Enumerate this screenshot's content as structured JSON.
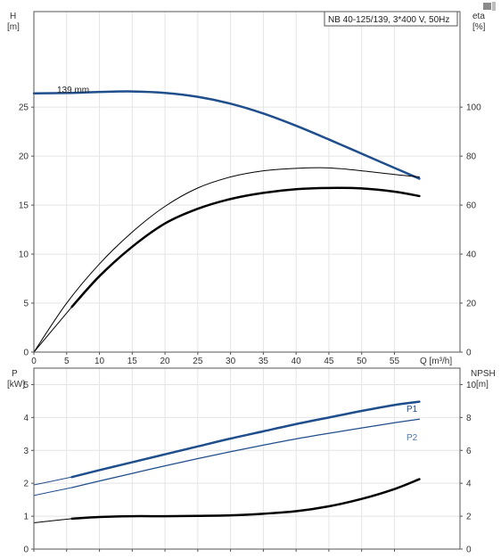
{
  "chart_data": [
    {
      "type": "line",
      "title": "NB 40-125/139, 3*400 V, 50Hz",
      "x_axis": {
        "label": "Q [m³/h]",
        "ticks": [
          0,
          5,
          10,
          15,
          20,
          25,
          30,
          35,
          40,
          45,
          50,
          55
        ],
        "range": [
          0,
          65
        ]
      },
      "y_axis_left": {
        "label_line1": "H",
        "label_line2": "[m]",
        "ticks": [
          0,
          5,
          10,
          15,
          20,
          25
        ],
        "range": [
          0,
          34.75
        ]
      },
      "y_axis_right": {
        "label_line1": "eta",
        "label_line2": "[%]",
        "ticks": [
          0,
          20,
          40,
          60,
          80,
          100
        ],
        "range": [
          0,
          139
        ]
      },
      "grid": true,
      "series": [
        {
          "name": "139 mm",
          "axis": "left",
          "color": "#1f4e8c",
          "width": 2.5,
          "x": [
            0,
            5.8,
            10,
            15,
            20,
            25,
            30,
            35,
            40,
            45,
            50,
            55,
            58.8
          ],
          "y": [
            26.4,
            26.45,
            26.55,
            26.6,
            26.45,
            26.05,
            25.35,
            24.35,
            23.1,
            21.7,
            20.25,
            18.8,
            17.7
          ]
        },
        {
          "axis": "left",
          "color": "#1f4e8c",
          "width": 1,
          "x": [
            0,
            5.8
          ],
          "y": [
            26.4,
            26.45
          ]
        },
        {
          "axis": "right",
          "color": "#000000",
          "width": 1,
          "x": [
            0,
            5,
            10,
            15,
            20,
            25,
            30,
            35,
            40,
            45,
            50,
            55,
            58.8
          ],
          "y": [
            0,
            20,
            36,
            49,
            59.5,
            67,
            71.5,
            74,
            75,
            75.2,
            74,
            72.5,
            71.5
          ]
        },
        {
          "axis": "right",
          "color": "#000000",
          "width": 2.5,
          "x": [
            5.8,
            10,
            15,
            20,
            25,
            30,
            35,
            40,
            45,
            50,
            55,
            58.8
          ],
          "y": [
            18.5,
            31,
            43,
            52.5,
            58.5,
            62.5,
            65,
            66.5,
            67,
            66.8,
            65.5,
            63.7
          ]
        },
        {
          "axis": "right",
          "color": "#000000",
          "width": 1,
          "x": [
            0,
            5.8
          ],
          "y": [
            0,
            18.5
          ]
        }
      ]
    },
    {
      "type": "line",
      "x_axis": {
        "ticks": [
          0,
          5,
          10,
          15,
          20,
          25,
          30,
          35,
          40,
          45,
          50,
          55
        ],
        "range": [
          0,
          65
        ]
      },
      "y_axis_left": {
        "label_line1": "P",
        "label_line2": "[kW]",
        "ticks": [
          0,
          1,
          2,
          3,
          4,
          5
        ],
        "range": [
          0,
          5.5
        ]
      },
      "y_axis_right": {
        "label_line1": "NPSH",
        "label_line2": "[m]",
        "ticks": [
          0,
          2,
          4,
          6,
          8,
          10
        ],
        "range": [
          0,
          11
        ]
      },
      "grid": true,
      "series": [
        {
          "name": "P1",
          "axis": "left",
          "color": "#1f4e8c",
          "width": 2.5,
          "x": [
            5.8,
            10,
            15,
            20,
            25,
            30,
            35,
            40,
            45,
            50,
            55,
            58.8
          ],
          "y": [
            2.19,
            2.4,
            2.64,
            2.88,
            3.12,
            3.36,
            3.58,
            3.8,
            4.0,
            4.2,
            4.38,
            4.48
          ]
        },
        {
          "axis": "left",
          "color": "#1f4e8c",
          "width": 1,
          "x": [
            0,
            5.8
          ],
          "y": [
            1.95,
            2.19
          ]
        },
        {
          "name": "P2",
          "axis": "left",
          "color": "#1f4e8c",
          "width": 1.3,
          "x": [
            5.8,
            10,
            15,
            20,
            25,
            30,
            35,
            40,
            45,
            50,
            55,
            58.8
          ],
          "y": [
            1.87,
            2.07,
            2.3,
            2.53,
            2.75,
            2.96,
            3.16,
            3.35,
            3.52,
            3.68,
            3.84,
            3.95
          ]
        },
        {
          "axis": "left",
          "color": "#1f4e8c",
          "width": 1,
          "x": [
            0,
            5.8
          ],
          "y": [
            1.63,
            1.87
          ]
        },
        {
          "axis": "right",
          "color": "#000000",
          "width": 2.5,
          "x": [
            5.8,
            10,
            15,
            20,
            25,
            30,
            35,
            40,
            45,
            50,
            55,
            58.8
          ],
          "y": [
            1.85,
            1.95,
            2.0,
            2.0,
            2.02,
            2.05,
            2.15,
            2.3,
            2.6,
            3.05,
            3.65,
            4.25
          ]
        },
        {
          "axis": "right",
          "color": "#000000",
          "width": 1,
          "x": [
            0,
            5.8
          ],
          "y": [
            1.6,
            1.85
          ]
        }
      ]
    }
  ]
}
